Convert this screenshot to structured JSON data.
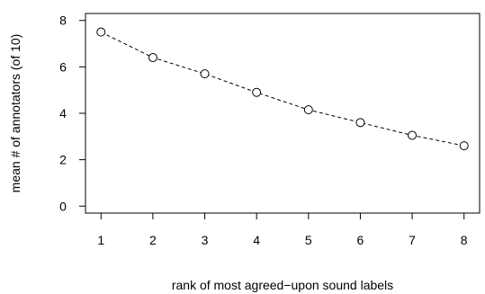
{
  "chart_data": {
    "type": "scatter",
    "title": "",
    "xlabel": "rank of most agreed−upon sound labels",
    "ylabel": "mean # of annotators (of 10)",
    "x": [
      1,
      2,
      3,
      4,
      5,
      6,
      7,
      8
    ],
    "y": [
      7.5,
      6.4,
      5.7,
      4.9,
      4.15,
      3.6,
      3.05,
      2.6
    ],
    "xlim": [
      0.7,
      8.3
    ],
    "ylim": [
      -0.3,
      8.3
    ],
    "xticks": [
      1,
      2,
      3,
      4,
      5,
      6,
      7,
      8
    ],
    "yticks": [
      0,
      2,
      4,
      6,
      8
    ],
    "line_style": "dashed",
    "marker": "open-circle",
    "grid": false,
    "legend": "none"
  }
}
